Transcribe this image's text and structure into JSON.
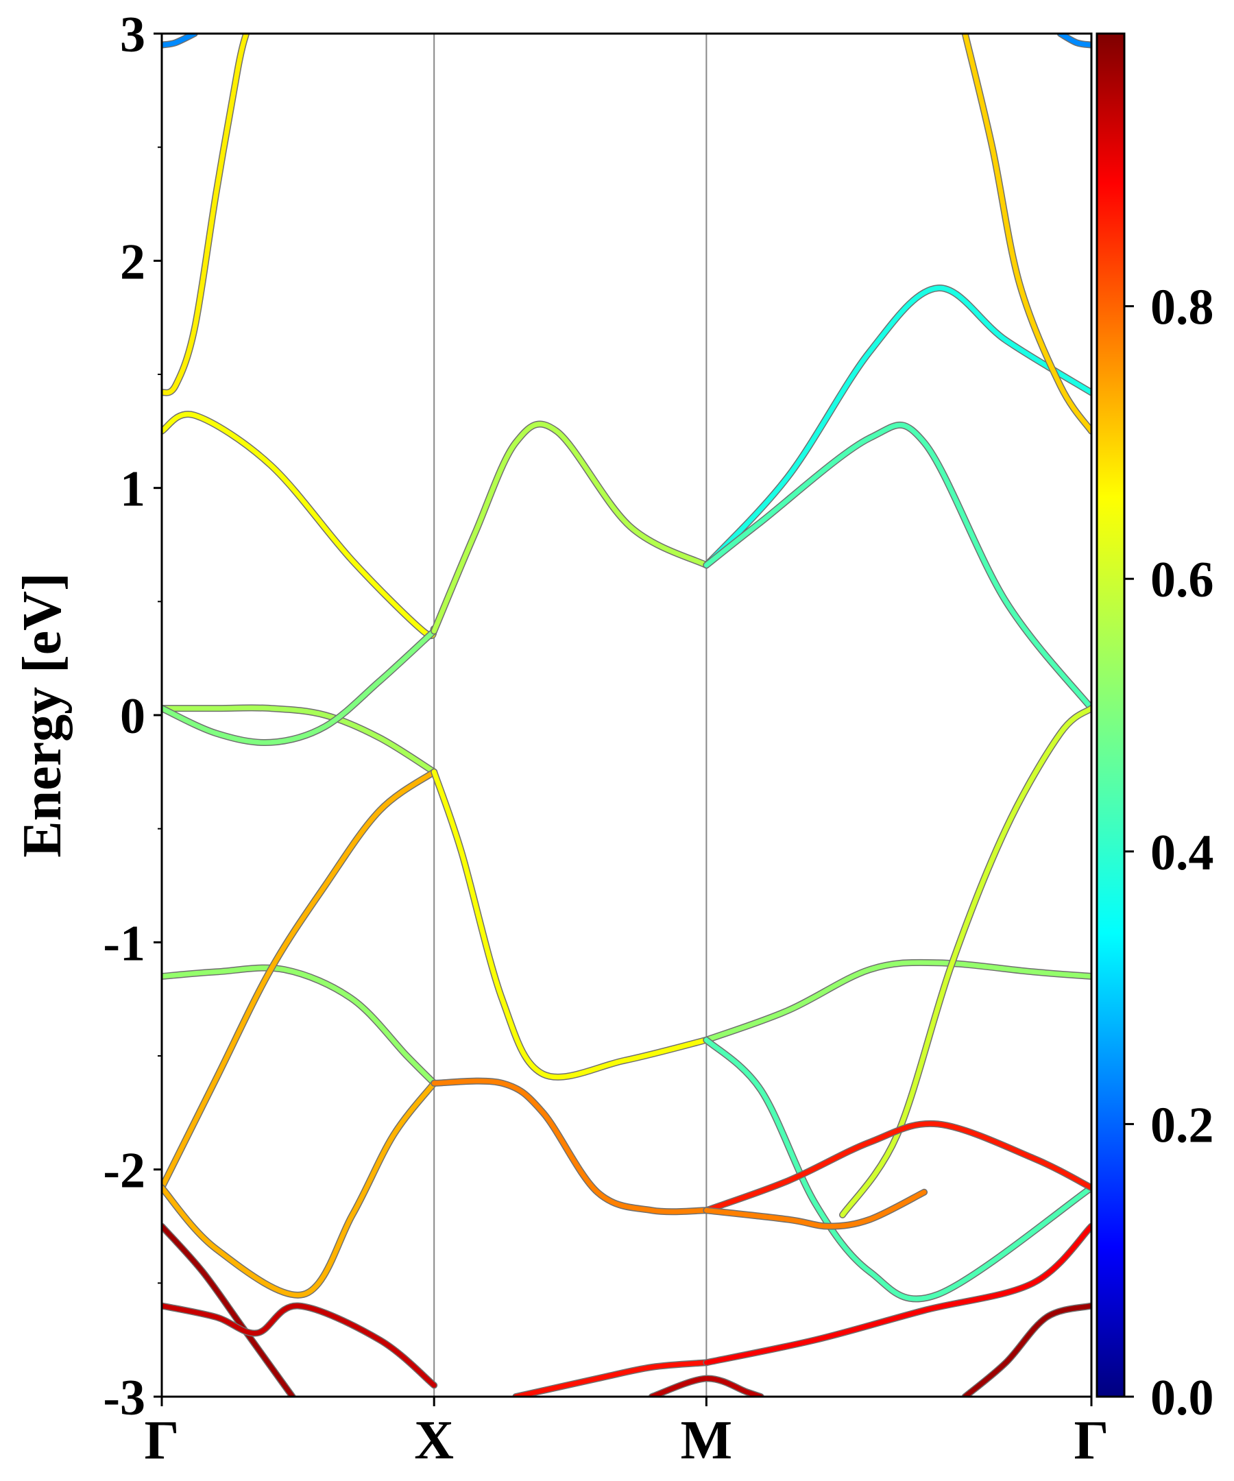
{
  "chart_data": {
    "type": "line",
    "ylabel": "Energy [eV]",
    "ylim": [
      -3,
      3
    ],
    "yticks": [
      "3",
      "2",
      "1",
      "0",
      "-1",
      "-2",
      "-3"
    ],
    "ytick_values": [
      3,
      2,
      1,
      0,
      -1,
      -2,
      -3
    ],
    "xticks": [
      "Γ",
      "X",
      "M",
      "Γ"
    ],
    "xtick_positions": [
      0,
      1,
      2,
      3.414
    ],
    "vertical_lines_at": [
      1,
      2
    ],
    "colorbar": {
      "colormap": "jet",
      "range": [
        0,
        1
      ],
      "tick_labels": [
        "0.0",
        "0.2",
        "0.4",
        "0.6",
        "0.8"
      ],
      "tick_values": [
        0,
        0.2,
        0.4,
        0.6,
        0.8
      ]
    },
    "grid": false,
    "series": [
      {
        "color_value": 0.64,
        "points": [
          [
            0,
            1.42
          ],
          [
            0.05,
            1.45
          ],
          [
            0.12,
            1.7
          ],
          [
            0.2,
            2.3
          ],
          [
            0.28,
            2.85
          ],
          [
            0.31,
            3.0
          ]
        ]
      },
      {
        "color_value": 0.62,
        "points": [
          [
            0,
            1.25
          ],
          [
            0.12,
            1.32
          ],
          [
            0.4,
            1.1
          ],
          [
            0.7,
            0.68
          ],
          [
            0.96,
            0.37
          ],
          [
            1.0,
            0.38
          ]
        ]
      },
      {
        "color_value": 0.54,
        "points": [
          [
            0,
            0.03
          ],
          [
            0.2,
            0.03
          ],
          [
            0.4,
            0.03
          ],
          [
            0.6,
            0.0
          ],
          [
            0.8,
            -0.1
          ],
          [
            1.0,
            -0.25
          ]
        ]
      },
      {
        "color_value": 0.5,
        "points": [
          [
            0,
            0.03
          ],
          [
            0.2,
            -0.08
          ],
          [
            0.4,
            -0.12
          ],
          [
            0.6,
            -0.05
          ],
          [
            0.8,
            0.15
          ],
          [
            1.0,
            0.37
          ]
        ]
      },
      {
        "color_value": 0.52,
        "points": [
          [
            0,
            -1.15
          ],
          [
            0.2,
            -1.13
          ],
          [
            0.45,
            -1.12
          ],
          [
            0.7,
            -1.25
          ],
          [
            0.9,
            -1.5
          ],
          [
            1.0,
            -1.62
          ]
        ]
      },
      {
        "color_value": 0.7,
        "points": [
          [
            0,
            -2.08
          ],
          [
            0.2,
            -1.6
          ],
          [
            0.4,
            -1.12
          ],
          [
            0.6,
            -0.75
          ],
          [
            0.8,
            -0.42
          ],
          [
            1.0,
            -0.25
          ]
        ]
      },
      {
        "color_value": 0.7,
        "points": [
          [
            0,
            -2.08
          ],
          [
            0.2,
            -2.35
          ],
          [
            0.52,
            -2.55
          ],
          [
            0.7,
            -2.2
          ],
          [
            0.85,
            -1.85
          ],
          [
            1.0,
            -1.62
          ]
        ]
      },
      {
        "color_value": 0.55,
        "points": [
          [
            1.0,
            0.37
          ],
          [
            1.15,
            0.8
          ],
          [
            1.3,
            1.2
          ],
          [
            1.45,
            1.25
          ],
          [
            1.72,
            0.83
          ],
          [
            2.0,
            0.66
          ]
        ]
      },
      {
        "color_value": 0.62,
        "points": [
          [
            1.0,
            -0.25
          ],
          [
            1.1,
            -0.6
          ],
          [
            1.25,
            -1.25
          ],
          [
            1.4,
            -1.58
          ],
          [
            1.7,
            -1.52
          ],
          [
            2.0,
            -1.43
          ]
        ]
      },
      {
        "color_value": 0.75,
        "points": [
          [
            1.0,
            -1.62
          ],
          [
            1.25,
            -1.62
          ],
          [
            1.4,
            -1.75
          ],
          [
            1.6,
            -2.1
          ],
          [
            1.8,
            -2.18
          ],
          [
            2.0,
            -2.18
          ]
        ]
      },
      {
        "color_value": 0.86,
        "points": [
          [
            1.3,
            -3.0
          ],
          [
            1.6,
            -2.92
          ],
          [
            1.8,
            -2.87
          ],
          [
            2.0,
            -2.85
          ]
        ]
      },
      {
        "color_value": 0.94,
        "points": [
          [
            1.8,
            -3.0
          ],
          [
            2.0,
            -2.92
          ],
          [
            2.15,
            -2.98
          ],
          [
            2.2,
            -3.0
          ]
        ]
      },
      {
        "color_value": 0.4,
        "points": [
          [
            2.0,
            0.66
          ],
          [
            2.3,
            1.05
          ],
          [
            2.6,
            1.6
          ],
          [
            2.85,
            1.88
          ],
          [
            3.1,
            1.65
          ],
          [
            3.414,
            1.42
          ]
        ]
      },
      {
        "color_value": 0.45,
        "points": [
          [
            2.0,
            0.66
          ],
          [
            2.2,
            0.85
          ],
          [
            2.6,
            1.22
          ],
          [
            2.8,
            1.2
          ],
          [
            3.1,
            0.5
          ],
          [
            3.414,
            0.03
          ]
        ]
      },
      {
        "color_value": 0.52,
        "points": [
          [
            2.0,
            -1.43
          ],
          [
            2.3,
            -1.3
          ],
          [
            2.6,
            -1.12
          ],
          [
            2.85,
            -1.09
          ],
          [
            3.2,
            -1.13
          ],
          [
            3.414,
            -1.15
          ]
        ]
      },
      {
        "color_value": 0.45,
        "points": [
          [
            2.0,
            -1.43
          ],
          [
            2.2,
            -1.65
          ],
          [
            2.4,
            -2.15
          ],
          [
            2.6,
            -2.45
          ],
          [
            2.85,
            -2.55
          ],
          [
            3.414,
            -2.08
          ]
        ]
      },
      {
        "color_value": 0.58,
        "points": [
          [
            2.5,
            -2.2
          ],
          [
            2.7,
            -1.85
          ],
          [
            2.9,
            -1.1
          ],
          [
            3.1,
            -0.5
          ],
          [
            3.3,
            -0.08
          ],
          [
            3.414,
            0.03
          ]
        ]
      },
      {
        "color_value": 0.85,
        "points": [
          [
            2.0,
            -2.18
          ],
          [
            2.3,
            -2.05
          ],
          [
            2.6,
            -1.88
          ],
          [
            2.85,
            -1.8
          ],
          [
            3.2,
            -1.95
          ],
          [
            3.414,
            -2.08
          ]
        ]
      },
      {
        "color_value": 0.75,
        "points": [
          [
            2.0,
            -2.18
          ],
          [
            2.3,
            -2.22
          ],
          [
            2.45,
            -2.25
          ],
          [
            2.6,
            -2.22
          ],
          [
            2.8,
            -2.1
          ]
        ]
      },
      {
        "color_value": 0.67,
        "points": [
          [
            3.414,
            1.25
          ],
          [
            3.3,
            1.45
          ],
          [
            3.15,
            1.9
          ],
          [
            3.05,
            2.5
          ],
          [
            2.95,
            3.0
          ]
        ]
      },
      {
        "color_value": 0.88,
        "points": [
          [
            2.0,
            -2.85
          ],
          [
            2.4,
            -2.75
          ],
          [
            2.8,
            -2.62
          ],
          [
            3.2,
            -2.5
          ],
          [
            3.414,
            -2.25
          ]
        ]
      },
      {
        "color_value": 0.97,
        "points": [
          [
            0,
            -2.25
          ],
          [
            0.15,
            -2.45
          ],
          [
            0.3,
            -2.7
          ],
          [
            0.48,
            -3.0
          ]
        ]
      },
      {
        "color_value": 0.93,
        "points": [
          [
            0,
            -2.6
          ],
          [
            0.2,
            -2.65
          ],
          [
            0.35,
            -2.72
          ],
          [
            0.5,
            -2.6
          ],
          [
            0.8,
            -2.75
          ],
          [
            1.0,
            -2.95
          ]
        ]
      },
      {
        "color_value": 0.97,
        "points": [
          [
            3.414,
            -2.6
          ],
          [
            3.25,
            -2.65
          ],
          [
            3.1,
            -2.85
          ],
          [
            2.95,
            -3.0
          ]
        ]
      },
      {
        "color_value": 0.26,
        "points": [
          [
            0,
            2.95
          ],
          [
            0.05,
            2.96
          ],
          [
            0.12,
            3.0
          ]
        ]
      },
      {
        "color_value": 0.26,
        "points": [
          [
            3.414,
            2.95
          ],
          [
            3.36,
            2.96
          ],
          [
            3.3,
            3.0
          ]
        ]
      }
    ]
  }
}
